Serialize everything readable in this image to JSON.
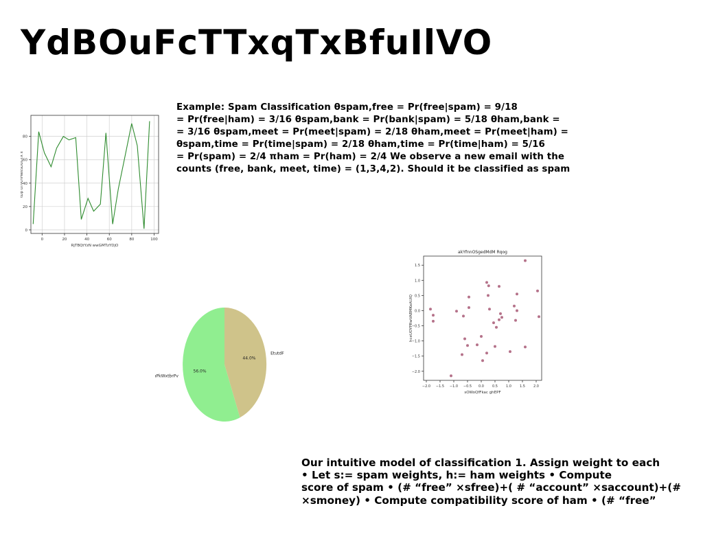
{
  "slide": {
    "title": "YdBOuFcTTxqTxBfuIlVO",
    "text_block_1": [
      "Example: Spam Classification θspam,free = Pr(free|spam) = 9/18",
      "= Pr(free|ham) = 3/16 θspam,bank = Pr(bank|spam) = 5/18 θham,bank =",
      "= 3/16 θspam,meet = Pr(meet|spam) = 2/18 θham,meet = Pr(meet|ham) =",
      "θspam,time = Pr(time|spam) = 2/18 θham,time = Pr(time|ham) = 5/16",
      "= Pr(spam) = 2/4 πham = Pr(ham) = 2/4 We observe a new email with the",
      "counts (free, bank, meet, time) = (1,3,4,2). Should it be classified as spam"
    ],
    "text_block_2": [
      "Our intuitive model of classification 1. Assign weight to each",
      "• Let s:= spam weights, h:= ham weights • Compute",
      "score of spam • (# “free” ×sfree)+( # “account” ×saccount)+(#",
      "×smoney) • Compute compatibility score of ham • (# “free”"
    ]
  },
  "chart_data": [
    {
      "type": "line",
      "title": "",
      "xlabel": "RjTBQtYzN wwGMTzYDjO",
      "ylabel": "tDp uTVuYHwsSDuGTX x",
      "xlim": [
        -10,
        104
      ],
      "ylim": [
        -3,
        98
      ],
      "xticks": [
        0,
        20,
        40,
        60,
        80,
        100
      ],
      "yticks": [
        0,
        20,
        40,
        60,
        80
      ],
      "grid": true,
      "color": "#2e8b2e",
      "x": [
        -8,
        -3,
        2,
        8,
        13,
        19,
        24,
        30,
        35,
        41,
        46,
        52,
        57,
        63,
        68,
        74,
        80,
        85,
        91,
        96
      ],
      "y": [
        5,
        84,
        66,
        54,
        70,
        80,
        77,
        79,
        9,
        27,
        16,
        22,
        83,
        5,
        35,
        63,
        91,
        72,
        1,
        93
      ]
    },
    {
      "type": "pie",
      "title": "",
      "slices": [
        {
          "label": "aPkWxtbrPv",
          "value": 56.0,
          "pct_label": "56.0%",
          "color": "#90ee90"
        },
        {
          "label": "EtutdF",
          "value": 44.0,
          "pct_label": "44.0%",
          "color": "#cfc38a"
        }
      ]
    },
    {
      "type": "scatter",
      "title": "akYfnnOSgedMdM Rqog",
      "xlabel": "sOWoQfFkac ghEPF",
      "ylabel": "hceUOYPRwVABMKeAUIQ",
      "xlim": [
        -2.1,
        2.2
      ],
      "ylim": [
        -2.3,
        1.8
      ],
      "xticks": [
        -2.0,
        -1.5,
        -1.0,
        -0.5,
        0.0,
        0.5,
        1.0,
        1.5,
        2.0
      ],
      "xtick_labels": [
        "−2.0",
        "−1.5",
        "−1.0",
        "−0.5",
        "0.0",
        "0.5",
        "1.0",
        "1.5",
        "2.0"
      ],
      "yticks": [
        -2.0,
        -1.5,
        -1.0,
        -0.5,
        0.0,
        0.5,
        1.0,
        1.5
      ],
      "ytick_labels": [
        "−2.0",
        "−1.5",
        "−1.0",
        "−0.5",
        "0.0",
        "0.5",
        "1.0",
        "1.5"
      ],
      "grid": false,
      "color": "#b5728a",
      "points": [
        [
          -1.85,
          0.05
        ],
        [
          -1.75,
          -0.15
        ],
        [
          -1.75,
          -0.35
        ],
        [
          -1.1,
          -2.15
        ],
        [
          -0.9,
          -0.02
        ],
        [
          -0.7,
          -1.45
        ],
        [
          -0.65,
          -0.18
        ],
        [
          -0.6,
          -0.93
        ],
        [
          -0.5,
          -1.15
        ],
        [
          -0.45,
          0.1
        ],
        [
          -0.45,
          0.45
        ],
        [
          -0.15,
          -1.13
        ],
        [
          0.0,
          -0.85
        ],
        [
          0.05,
          -1.65
        ],
        [
          0.2,
          0.93
        ],
        [
          0.2,
          -1.4
        ],
        [
          0.25,
          0.5
        ],
        [
          0.27,
          0.82
        ],
        [
          0.3,
          0.05
        ],
        [
          0.45,
          -0.4
        ],
        [
          0.5,
          -1.18
        ],
        [
          0.55,
          -0.55
        ],
        [
          0.65,
          0.8
        ],
        [
          0.65,
          -0.3
        ],
        [
          0.7,
          -0.1
        ],
        [
          0.75,
          -0.22
        ],
        [
          1.05,
          -1.35
        ],
        [
          1.2,
          0.15
        ],
        [
          1.25,
          -0.32
        ],
        [
          1.3,
          0.0
        ],
        [
          1.3,
          0.55
        ],
        [
          1.6,
          -1.2
        ],
        [
          1.6,
          1.65
        ],
        [
          2.05,
          0.65
        ],
        [
          2.1,
          -0.2
        ]
      ]
    }
  ]
}
